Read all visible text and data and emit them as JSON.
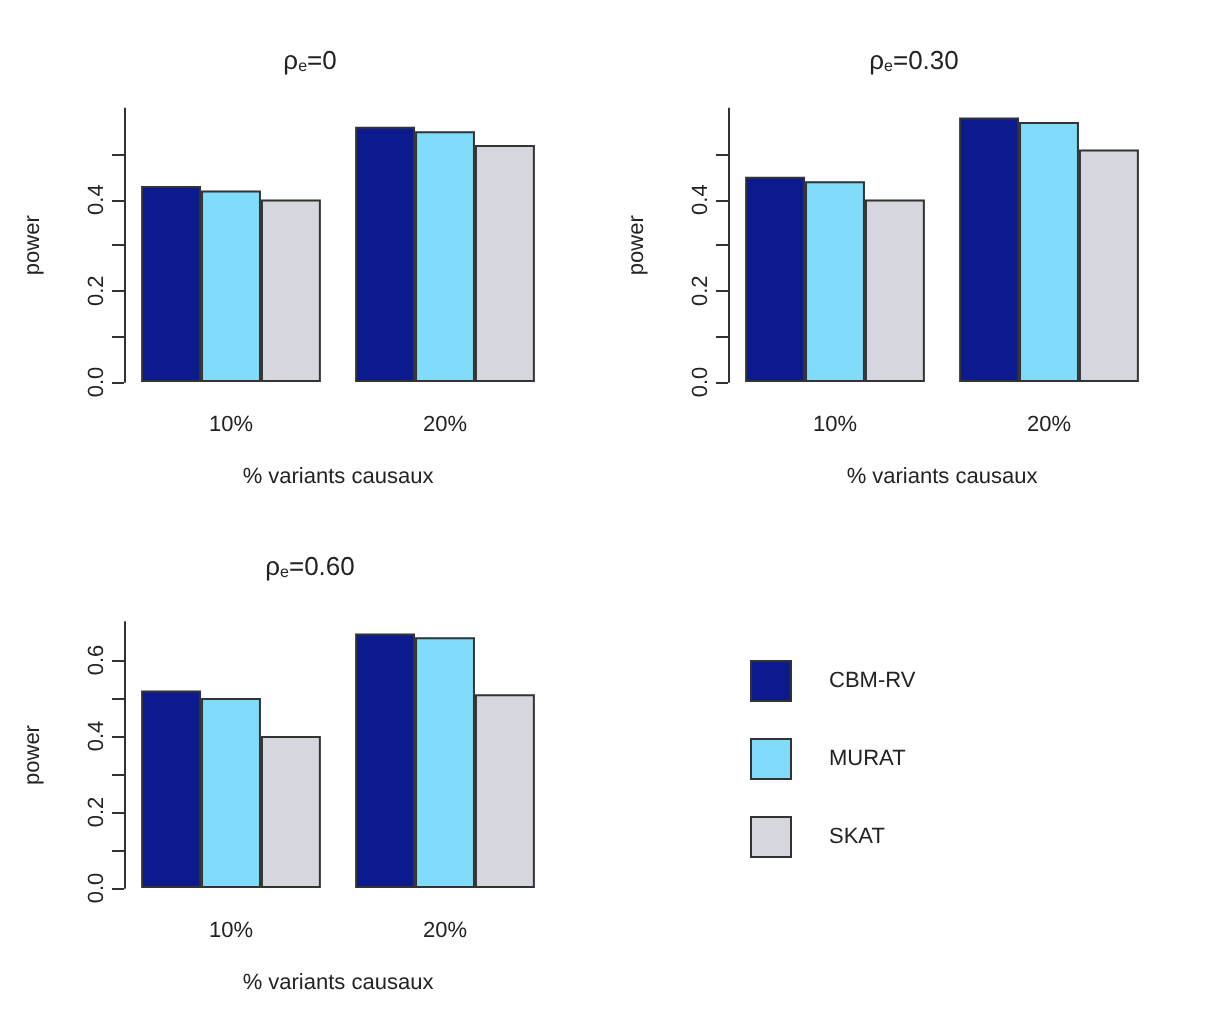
{
  "chart_data": [
    {
      "type": "bar",
      "title": "ρ$_{e}$=0",
      "xlabel": "% variants causaux",
      "ylabel": "power",
      "categories": [
        "10%",
        "20%"
      ],
      "series": [
        {
          "color": "#0b1a8c",
          "values": [
            0.43,
            0.56
          ]
        },
        {
          "color": "#80dcfa",
          "values": [
            0.42,
            0.55
          ]
        },
        {
          "color": "#d6d6de",
          "values": [
            0.4,
            0.52
          ]
        }
      ],
      "ylim": [
        0,
        0.6
      ],
      "yticks": [
        {
          "value": 0,
          "label": "0.0"
        },
        {
          "value": 0.1,
          "label": null
        },
        {
          "value": 0.2,
          "label": "0.2"
        },
        {
          "value": 0.3,
          "label": null
        },
        {
          "value": 0.4,
          "label": "0.4"
        },
        {
          "value": 0.5,
          "label": null
        }
      ],
      "legend": false
    },
    {
      "type": "bar",
      "title": "ρ$_{e}$=0.30",
      "xlabel": "% variants causaux",
      "ylabel": "power",
      "categories": [
        "10%",
        "20%"
      ],
      "series": [
        {
          "color": "#0b1a8c",
          "values": [
            0.45,
            0.58
          ]
        },
        {
          "color": "#80dcfa",
          "values": [
            0.44,
            0.57
          ]
        },
        {
          "color": "#d6d6de",
          "values": [
            0.4,
            0.51
          ]
        }
      ],
      "ylim": [
        0,
        0.6
      ],
      "yticks": [
        {
          "value": 0,
          "label": "0.0"
        },
        {
          "value": 0.1,
          "label": null
        },
        {
          "value": 0.2,
          "label": "0.2"
        },
        {
          "value": 0.3,
          "label": null
        },
        {
          "value": 0.4,
          "label": "0.4"
        },
        {
          "value": 0.5,
          "label": null
        }
      ],
      "legend": false
    },
    {
      "type": "bar",
      "title": "ρ$_{e}$=0.60",
      "xlabel": "% variants causaux",
      "ylabel": "power",
      "categories": [
        "10%",
        "20%"
      ],
      "series": [
        {
          "name": "CBM-RV",
          "color": "#0b1a8c",
          "values": [
            0.52,
            0.67
          ]
        },
        {
          "name": "MURAT",
          "color": "#80dcfa",
          "values": [
            0.5,
            0.66
          ]
        },
        {
          "name": "SKAT",
          "color": "#d6d6de",
          "values": [
            0.4,
            0.51
          ]
        }
      ],
      "ylim": [
        0,
        0.7
      ],
      "yticks": [
        {
          "value": 0,
          "label": "0.0"
        },
        {
          "value": 0.1,
          "label": null
        },
        {
          "value": 0.2,
          "label": "0.2"
        },
        {
          "value": 0.3,
          "label": null
        },
        {
          "value": 0.4,
          "label": "0.4"
        },
        {
          "value": 0.5,
          "label": null
        },
        {
          "value": 0.6,
          "label": "0.6"
        }
      ],
      "legend": "right"
    }
  ]
}
